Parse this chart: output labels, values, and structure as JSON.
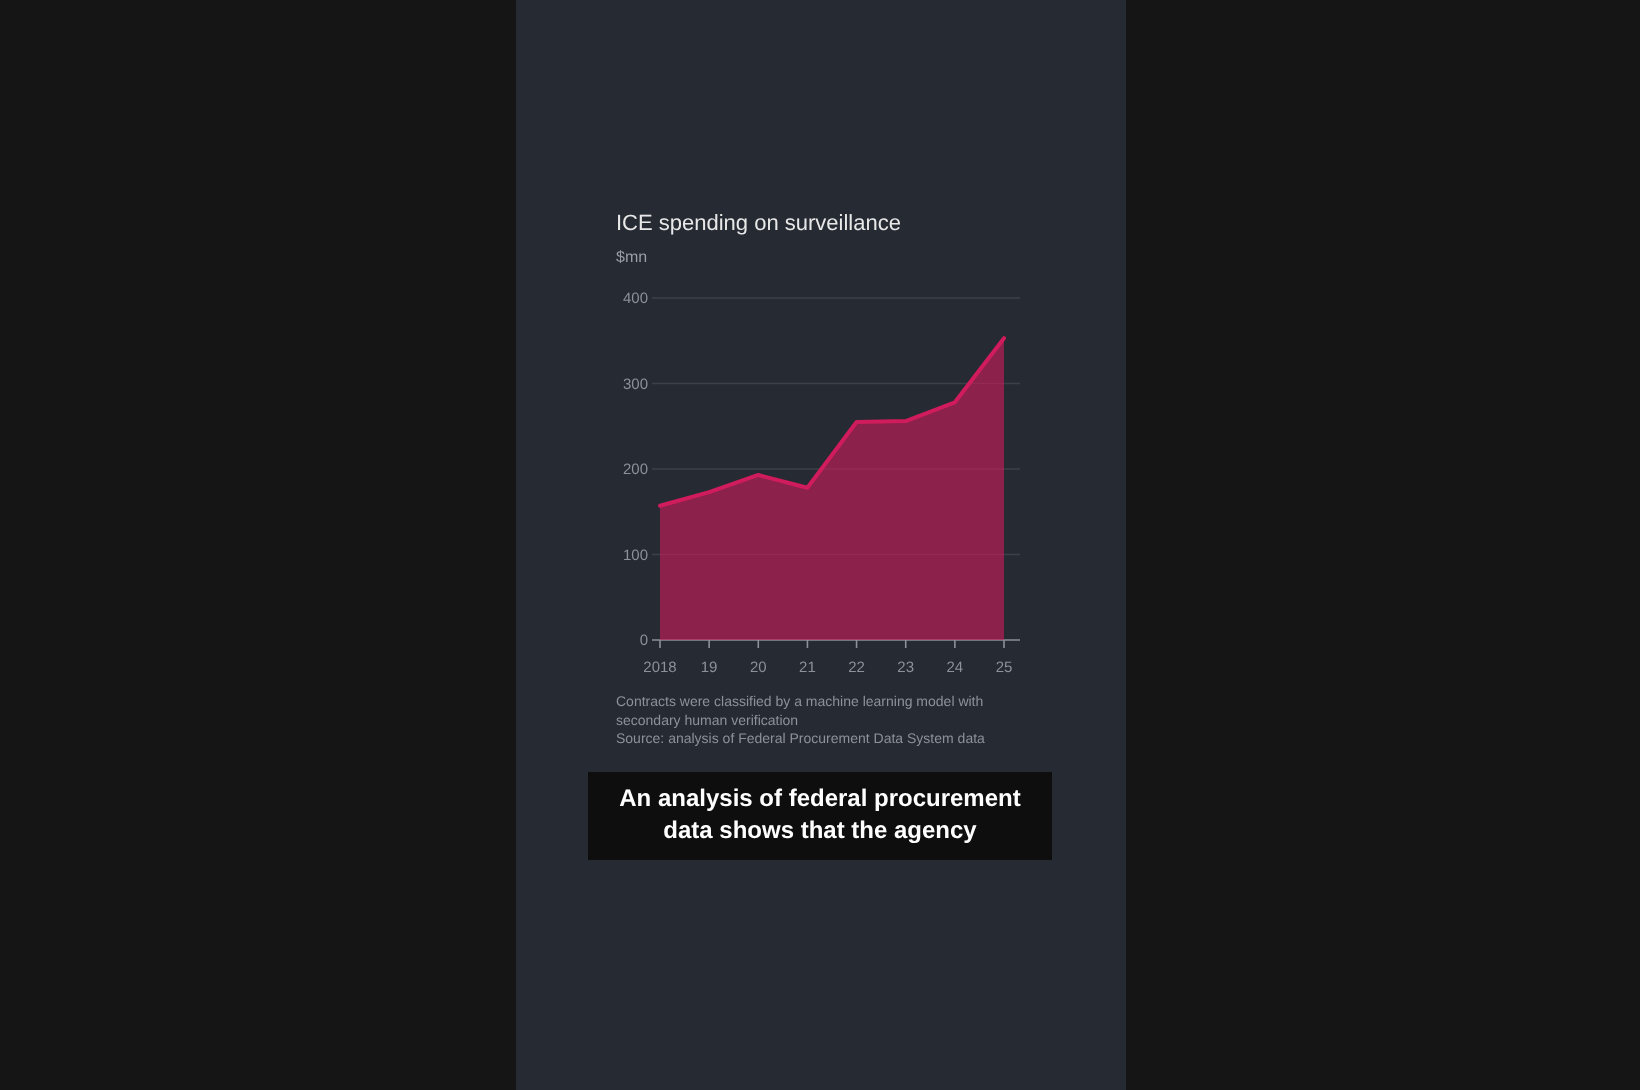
{
  "chart_data": {
    "type": "area",
    "title": "ICE spending on surveillance",
    "ylabel": "$mn",
    "categories": [
      "2018",
      "19",
      "20",
      "21",
      "22",
      "23",
      "24",
      "25"
    ],
    "series": [
      {
        "color": "#d01c5c",
        "values": [
          157,
          173,
          193,
          178,
          255,
          256,
          278,
          353
        ]
      }
    ],
    "ylim": [
      0,
      400
    ],
    "yticks": [
      0,
      100,
      200,
      300,
      400
    ],
    "grid": "y",
    "marker": "none",
    "line_style": "solid",
    "annotations": [
      "Contracts were classified by a machine learning model with secondary human verification",
      "Source: analysis of Federal Procurement Data System data",
      "An analysis of federal procurement data shows that the agency"
    ]
  }
}
